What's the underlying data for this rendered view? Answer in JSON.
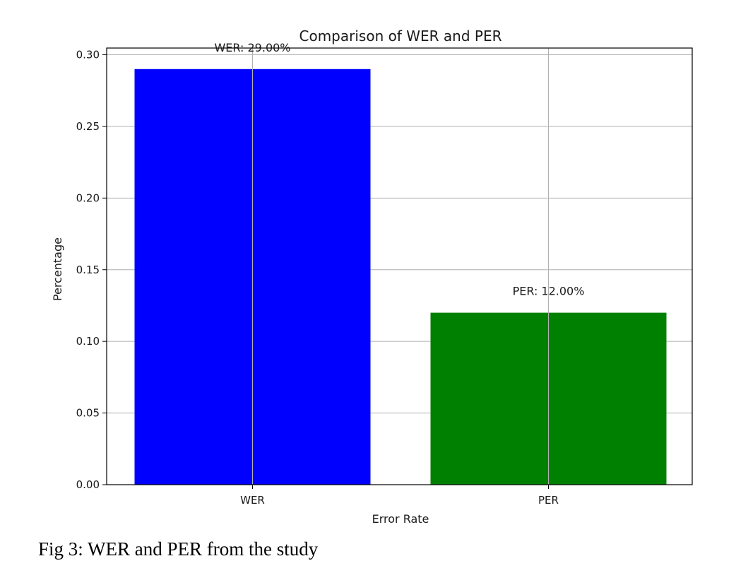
{
  "chart_data": {
    "type": "bar",
    "title": "Comparison of WER and PER",
    "xlabel": "Error Rate",
    "ylabel": "Percentage",
    "categories": [
      "WER",
      "PER"
    ],
    "values": [
      0.29,
      0.12
    ],
    "bar_colors": [
      "#0000ff",
      "#008000"
    ],
    "data_labels": [
      "WER: 29.00%",
      "PER: 12.00%"
    ],
    "ylim": [
      0,
      0.3
    ],
    "yticks": [
      "0.00",
      "0.05",
      "0.10",
      "0.15",
      "0.20",
      "0.25",
      "0.30"
    ],
    "grid": true,
    "legend": "none"
  },
  "caption": "Fig 3: WER and PER from the study"
}
